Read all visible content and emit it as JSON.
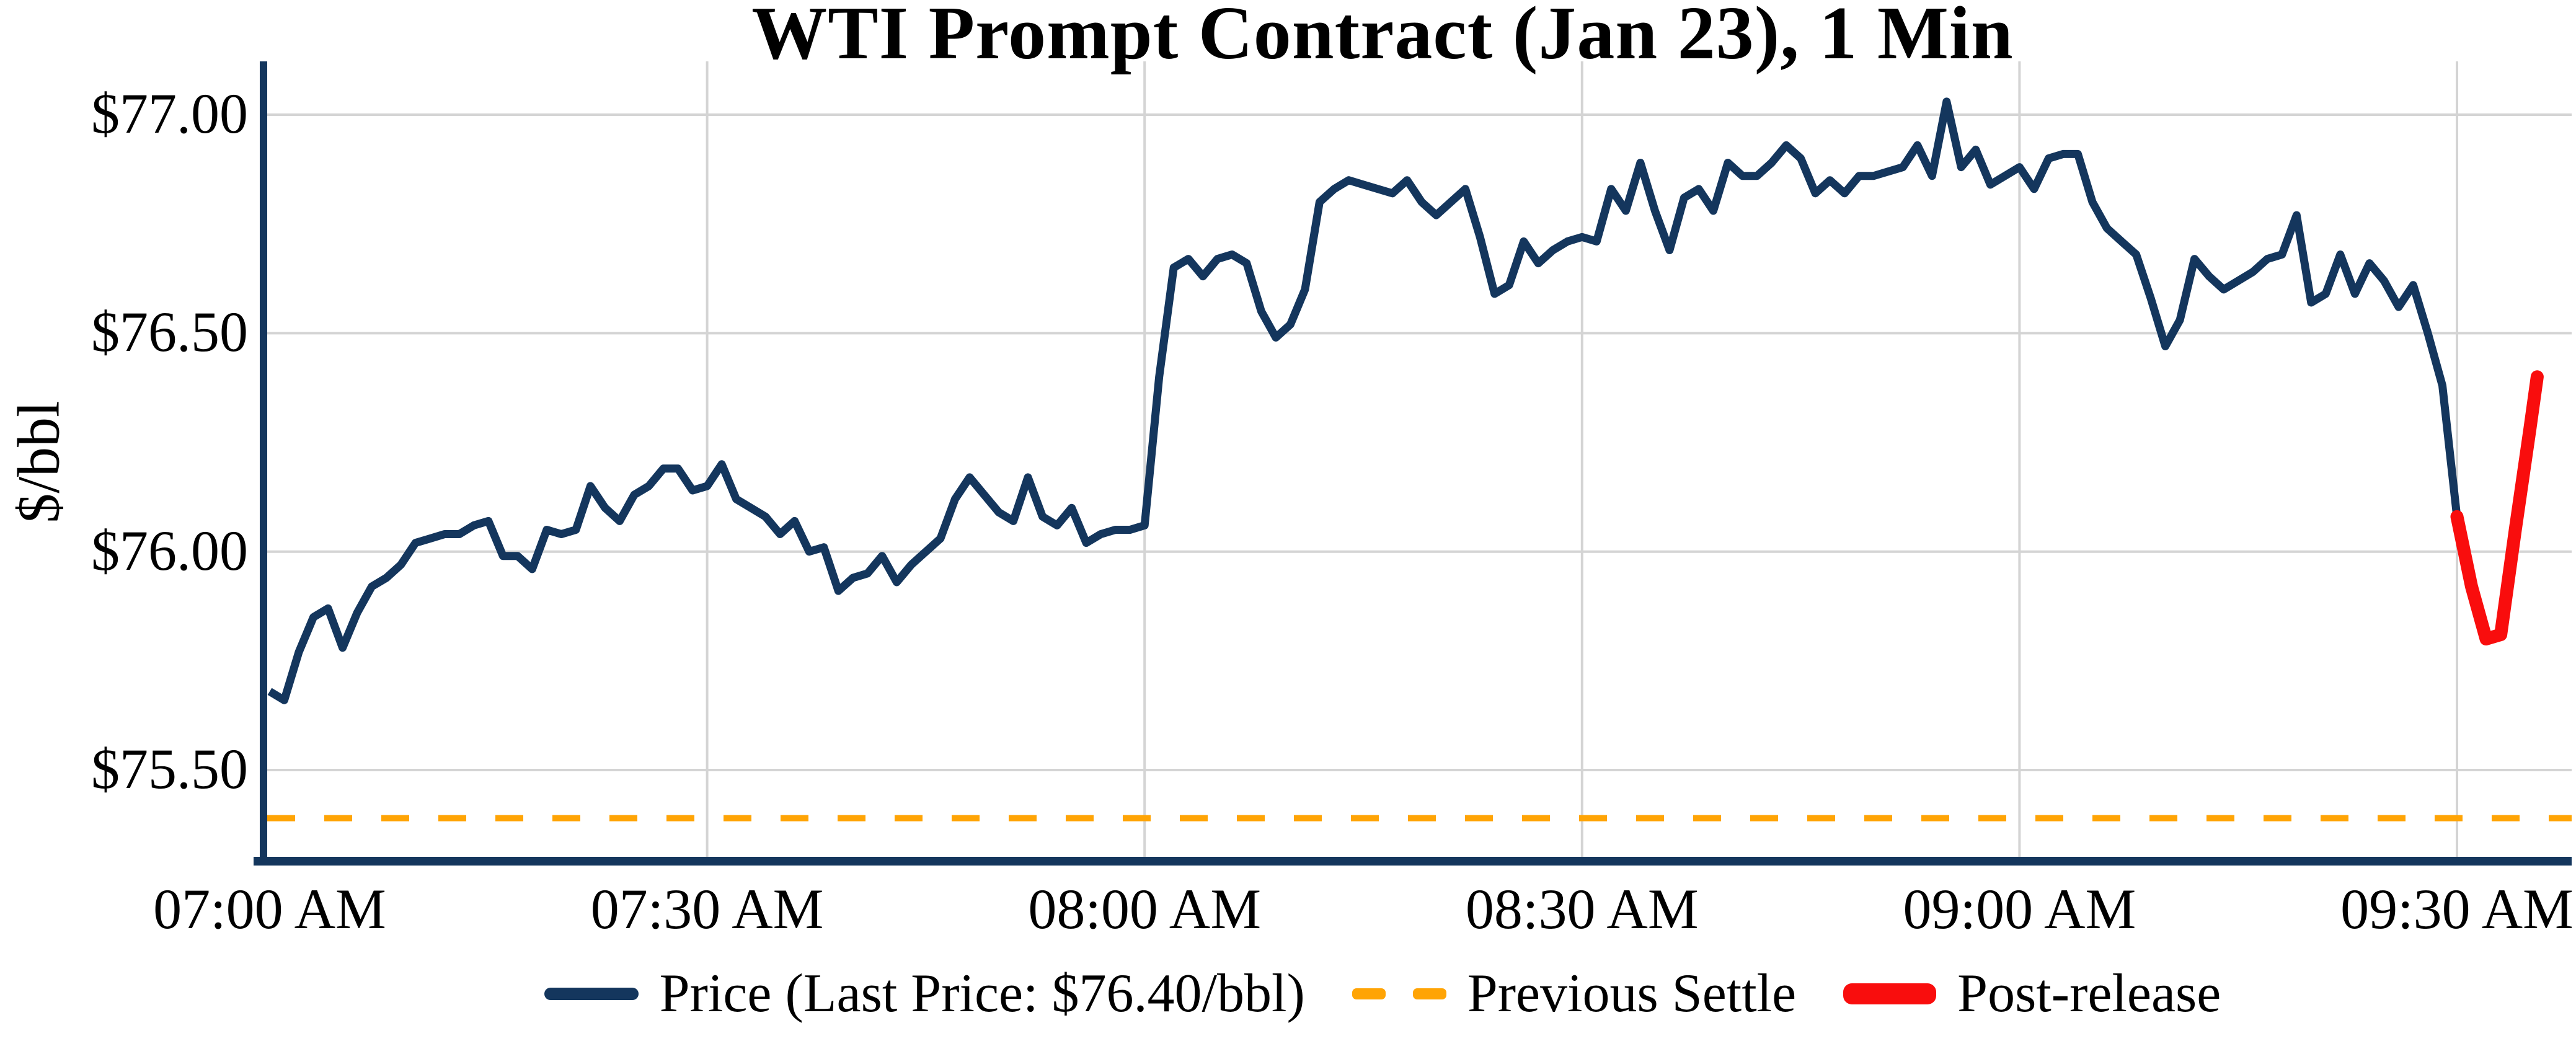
{
  "title": "WTI Prompt Contract (Jan 23), 1 Min",
  "y_axis": {
    "label": "$/bbl",
    "ticks": [
      "$77.00",
      "$76.50",
      "$76.00",
      "$75.50"
    ]
  },
  "x_axis": {
    "ticks": [
      "07:00 AM",
      "07:30 AM",
      "08:00 AM",
      "08:30 AM",
      "09:00 AM",
      "09:30 AM"
    ]
  },
  "legend": {
    "price_label": "Price (Last Price: $76.40/bbl)",
    "settle_label": "Previous Settle",
    "post_label": "Post-release"
  },
  "colors": {
    "price": "#14365d",
    "settle": "#ffa405",
    "post": "#f90d0d",
    "grid": "#d4d4d4"
  },
  "chart_data": {
    "type": "line",
    "title": "WTI Prompt Contract (Jan 23), 1 Min",
    "xlabel": "",
    "ylabel": "$/bbl",
    "x_unit": "minutes since 07:00 AM",
    "x_ticks": {
      "labels": [
        "07:00 AM",
        "07:30 AM",
        "08:00 AM",
        "08:30 AM",
        "09:00 AM",
        "09:30 AM"
      ],
      "minutes": [
        0,
        30,
        60,
        90,
        120,
        150
      ]
    },
    "y_ticks": {
      "labels": [
        "$77.00",
        "$76.50",
        "$76.00",
        "$75.50"
      ],
      "values": [
        77.0,
        76.5,
        76.0,
        75.5
      ]
    },
    "ylim": [
      75.27,
      77.12
    ],
    "xlim_minutes": [
      -0.5,
      158
    ],
    "grid": true,
    "legend_position": "bottom",
    "last_price": 76.4,
    "previous_settle": 75.39,
    "series": [
      {
        "name": "Price (Last Price: $76.40/bbl)",
        "color": "#14365d",
        "width": 13,
        "cap": "butt",
        "points": [
          [
            0,
            75.68
          ],
          [
            1,
            75.66
          ],
          [
            2,
            75.77
          ],
          [
            3,
            75.85
          ],
          [
            4,
            75.87
          ],
          [
            5,
            75.78
          ],
          [
            6,
            75.86
          ],
          [
            7,
            75.92
          ],
          [
            8,
            75.94
          ],
          [
            9,
            75.97
          ],
          [
            10,
            76.02
          ],
          [
            11,
            76.03
          ],
          [
            12,
            76.04
          ],
          [
            13,
            76.04
          ],
          [
            14,
            76.06
          ],
          [
            15,
            76.07
          ],
          [
            16,
            75.99
          ],
          [
            17,
            75.99
          ],
          [
            18,
            75.96
          ],
          [
            19,
            76.05
          ],
          [
            20,
            76.04
          ],
          [
            21,
            76.05
          ],
          [
            22,
            76.15
          ],
          [
            23,
            76.1
          ],
          [
            24,
            76.07
          ],
          [
            25,
            76.13
          ],
          [
            26,
            76.15
          ],
          [
            27,
            76.19
          ],
          [
            28,
            76.19
          ],
          [
            29,
            76.14
          ],
          [
            30,
            76.15
          ],
          [
            31,
            76.2
          ],
          [
            32,
            76.12
          ],
          [
            33,
            76.1
          ],
          [
            34,
            76.08
          ],
          [
            35,
            76.04
          ],
          [
            36,
            76.07
          ],
          [
            37,
            76.0
          ],
          [
            38,
            76.01
          ],
          [
            39,
            75.91
          ],
          [
            40,
            75.94
          ],
          [
            41,
            75.95
          ],
          [
            42,
            75.99
          ],
          [
            43,
            75.93
          ],
          [
            44,
            75.97
          ],
          [
            45,
            76.0
          ],
          [
            46,
            76.03
          ],
          [
            47,
            76.12
          ],
          [
            48,
            76.17
          ],
          [
            49,
            76.13
          ],
          [
            50,
            76.09
          ],
          [
            51,
            76.07
          ],
          [
            52,
            76.17
          ],
          [
            53,
            76.08
          ],
          [
            54,
            76.06
          ],
          [
            55,
            76.1
          ],
          [
            56,
            76.02
          ],
          [
            57,
            76.04
          ],
          [
            58,
            76.05
          ],
          [
            59,
            76.05
          ],
          [
            60,
            76.06
          ],
          [
            61,
            76.4
          ],
          [
            62,
            76.65
          ],
          [
            63,
            76.67
          ],
          [
            64,
            76.63
          ],
          [
            65,
            76.67
          ],
          [
            66,
            76.68
          ],
          [
            67,
            76.66
          ],
          [
            68,
            76.55
          ],
          [
            69,
            76.49
          ],
          [
            70,
            76.52
          ],
          [
            71,
            76.6
          ],
          [
            72,
            76.8
          ],
          [
            73,
            76.83
          ],
          [
            74,
            76.85
          ],
          [
            75,
            76.84
          ],
          [
            76,
            76.83
          ],
          [
            77,
            76.82
          ],
          [
            78,
            76.85
          ],
          [
            79,
            76.8
          ],
          [
            80,
            76.77
          ],
          [
            81,
            76.8
          ],
          [
            82,
            76.83
          ],
          [
            83,
            76.72
          ],
          [
            84,
            76.59
          ],
          [
            85,
            76.61
          ],
          [
            86,
            76.71
          ],
          [
            87,
            76.66
          ],
          [
            88,
            76.69
          ],
          [
            89,
            76.71
          ],
          [
            90,
            76.72
          ],
          [
            91,
            76.71
          ],
          [
            92,
            76.83
          ],
          [
            93,
            76.78
          ],
          [
            94,
            76.89
          ],
          [
            95,
            76.78
          ],
          [
            96,
            76.69
          ],
          [
            97,
            76.81
          ],
          [
            98,
            76.83
          ],
          [
            99,
            76.78
          ],
          [
            100,
            76.89
          ],
          [
            101,
            76.86
          ],
          [
            102,
            76.86
          ],
          [
            103,
            76.89
          ],
          [
            104,
            76.93
          ],
          [
            105,
            76.9
          ],
          [
            106,
            76.82
          ],
          [
            107,
            76.85
          ],
          [
            108,
            76.82
          ],
          [
            109,
            76.86
          ],
          [
            110,
            76.86
          ],
          [
            111,
            76.87
          ],
          [
            112,
            76.88
          ],
          [
            113,
            76.93
          ],
          [
            114,
            76.86
          ],
          [
            115,
            77.03
          ],
          [
            116,
            76.88
          ],
          [
            117,
            76.92
          ],
          [
            118,
            76.84
          ],
          [
            119,
            76.86
          ],
          [
            120,
            76.88
          ],
          [
            121,
            76.83
          ],
          [
            122,
            76.9
          ],
          [
            123,
            76.91
          ],
          [
            124,
            76.91
          ],
          [
            125,
            76.8
          ],
          [
            126,
            76.74
          ],
          [
            127,
            76.71
          ],
          [
            128,
            76.68
          ],
          [
            129,
            76.58
          ],
          [
            130,
            76.47
          ],
          [
            131,
            76.53
          ],
          [
            132,
            76.67
          ],
          [
            133,
            76.63
          ],
          [
            134,
            76.6
          ],
          [
            135,
            76.62
          ],
          [
            136,
            76.64
          ],
          [
            137,
            76.67
          ],
          [
            138,
            76.68
          ],
          [
            139,
            76.77
          ],
          [
            140,
            76.57
          ],
          [
            141,
            76.59
          ],
          [
            142,
            76.68
          ],
          [
            143,
            76.59
          ],
          [
            144,
            76.66
          ],
          [
            145,
            76.62
          ],
          [
            146,
            76.56
          ],
          [
            147,
            76.61
          ],
          [
            148,
            76.5
          ],
          [
            149,
            76.38
          ],
          [
            150,
            76.08
          ]
        ]
      },
      {
        "name": "Post-release",
        "color": "#f90d0d",
        "width": 21,
        "cap": "round",
        "points": [
          [
            150,
            76.08
          ],
          [
            151,
            75.92
          ],
          [
            152,
            75.8
          ],
          [
            153,
            75.81
          ],
          [
            154,
            76.05
          ],
          [
            155,
            76.28
          ],
          [
            155.5,
            76.4
          ]
        ]
      }
    ]
  }
}
